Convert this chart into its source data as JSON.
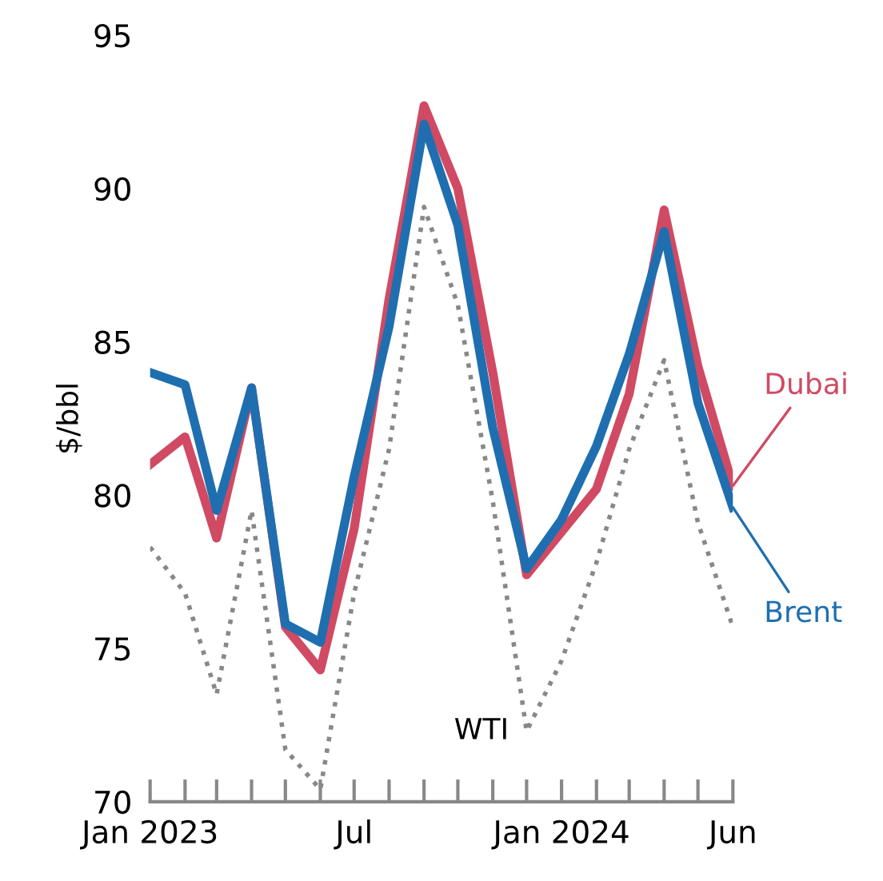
{
  "chart_data": {
    "type": "line",
    "ylabel": "$/bbl",
    "x": [
      "2023-01",
      "2023-02",
      "2023-03",
      "2023-04",
      "2023-05",
      "2023-06",
      "2023-07",
      "2023-08",
      "2023-09",
      "2023-10",
      "2023-11",
      "2023-12",
      "2024-01",
      "2024-02",
      "2024-03",
      "2024-04",
      "2024-05",
      "2024-06"
    ],
    "series": [
      {
        "name": "Brent",
        "color": "#1f6fb0",
        "line_style": "solid",
        "values": [
          84.0,
          83.6,
          79.5,
          83.5,
          75.8,
          75.2,
          80.6,
          85.5,
          92.1,
          88.8,
          82.2,
          77.6,
          79.2,
          81.6,
          84.6,
          88.6,
          83.0,
          79.6
        ]
      },
      {
        "name": "Dubai",
        "color": "#d04a63",
        "line_style": "solid",
        "values": [
          81.0,
          81.9,
          78.6,
          83.5,
          75.7,
          74.3,
          78.9,
          86.4,
          92.7,
          90.0,
          84.0,
          77.4,
          78.8,
          80.2,
          83.3,
          89.3,
          84.2,
          80.3
        ]
      },
      {
        "name": "WTI",
        "color": "#888888",
        "line_style": "dotted",
        "values": [
          78.3,
          76.8,
          73.5,
          79.5,
          71.7,
          70.4,
          76.8,
          81.5,
          89.4,
          86.2,
          79.8,
          72.3,
          74.6,
          77.8,
          81.5,
          84.4,
          79.1,
          75.7
        ]
      }
    ],
    "xlim": [
      "2023-01",
      "2024-06"
    ],
    "xticks": [
      {
        "value": "2023-01",
        "label": "Jan 2023"
      },
      {
        "value": "2023-02",
        "label": null
      },
      {
        "value": "2023-03",
        "label": null
      },
      {
        "value": "2023-04",
        "label": null
      },
      {
        "value": "2023-05",
        "label": null
      },
      {
        "value": "2023-06",
        "label": null
      },
      {
        "value": "2023-07",
        "label": "Jul"
      },
      {
        "value": "2023-08",
        "label": null
      },
      {
        "value": "2023-09",
        "label": null
      },
      {
        "value": "2023-10",
        "label": null
      },
      {
        "value": "2023-11",
        "label": null
      },
      {
        "value": "2023-12",
        "label": null
      },
      {
        "value": "2024-01",
        "label": "Jan 2024"
      },
      {
        "value": "2024-02",
        "label": null
      },
      {
        "value": "2024-03",
        "label": null
      },
      {
        "value": "2024-04",
        "label": null
      },
      {
        "value": "2024-05",
        "label": null
      },
      {
        "value": "2024-06",
        "label": "Jun"
      }
    ],
    "ylim": [
      70,
      95
    ],
    "yticks": [
      70,
      75,
      80,
      85,
      90,
      95
    ],
    "grid": false,
    "legend": false,
    "marker": "none"
  }
}
